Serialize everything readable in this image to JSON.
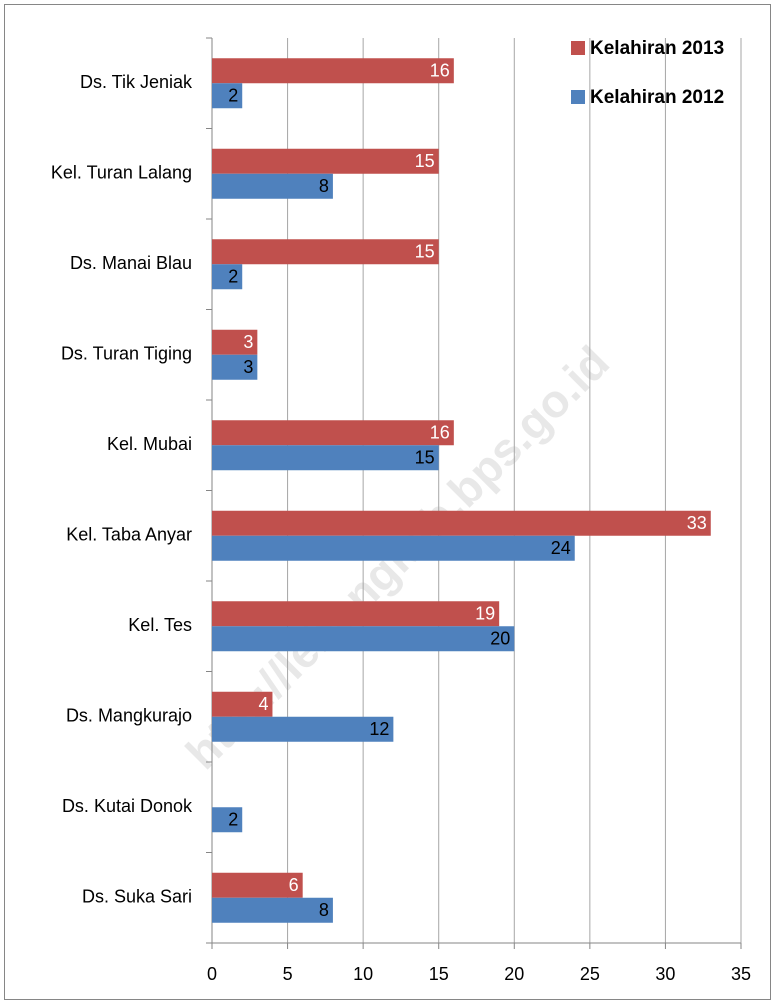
{
  "chart_data": {
    "type": "barh",
    "watermark": "http://lebongkab.bps.go.id",
    "categories": [
      "Ds. Tik Jeniak",
      "Kel. Turan Lalang",
      "Ds. Manai Blau",
      "Ds. Turan Tiging",
      "Kel. Mubai",
      "Kel. Taba Anyar",
      "Kel. Tes",
      "Ds. Mangkurajo",
      "Ds. Kutai Donok",
      "Ds. Suka Sari"
    ],
    "series": [
      {
        "name": "Kelahiran 2013",
        "color": "#c0504d",
        "values": [
          16,
          15,
          15,
          3,
          16,
          33,
          19,
          4,
          null,
          6
        ]
      },
      {
        "name": "Kelahiran 2012",
        "color": "#4f81bd",
        "values": [
          2,
          8,
          2,
          3,
          15,
          24,
          20,
          12,
          2,
          8
        ]
      }
    ],
    "xlim": [
      0,
      35
    ],
    "xticks": [
      0,
      5,
      10,
      15,
      20,
      25,
      30,
      35
    ],
    "grid": true,
    "legend": "top-right"
  }
}
